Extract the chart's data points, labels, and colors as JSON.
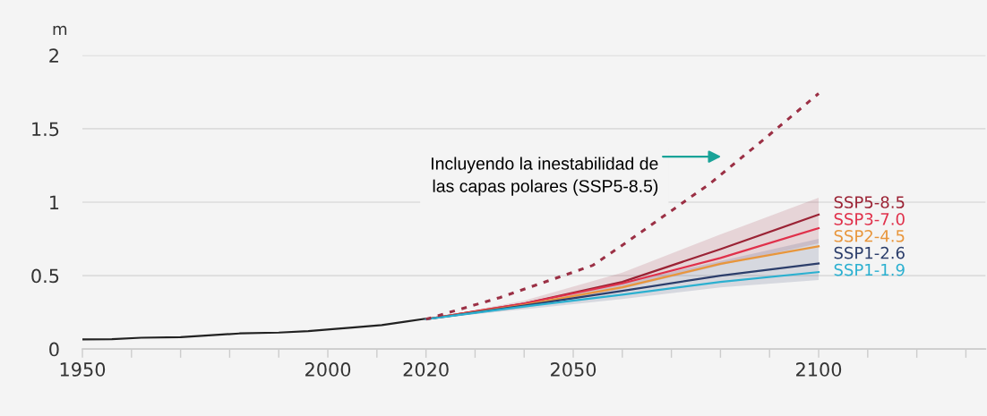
{
  "chart_data": {
    "type": "line",
    "ylabel": "m",
    "xlim": [
      1950,
      2134
    ],
    "ylim": [
      0,
      2
    ],
    "xticks": [
      1950,
      {
        "value": 1960,
        "label": null
      },
      {
        "value": 1970,
        "label": null
      },
      {
        "value": 1980,
        "label": null
      },
      {
        "value": 1990,
        "label": null
      },
      2000,
      {
        "value": 2010,
        "label": null
      },
      2020,
      {
        "value": 2030,
        "label": null
      },
      {
        "value": 2040,
        "label": null
      },
      2050,
      {
        "value": 2060,
        "label": null
      },
      {
        "value": 2070,
        "label": null
      },
      {
        "value": 2080,
        "label": null
      },
      {
        "value": 2090,
        "label": null
      },
      2100,
      {
        "value": 2110,
        "label": null
      },
      {
        "value": 2120,
        "label": null
      },
      {
        "value": 2130,
        "label": null
      }
    ],
    "yticks": [
      0,
      0.5,
      1,
      1.5,
      2
    ],
    "grid": "y",
    "series": [
      {
        "color": "#222222",
        "x": [
          1950,
          1956,
          1962,
          1970,
          1975,
          1982,
          1990,
          1996,
          2001,
          2005,
          2011,
          2016,
          2020
        ],
        "values": [
          0.065,
          0.067,
          0.077,
          0.081,
          0.091,
          0.106,
          0.112,
          0.122,
          0.136,
          0.146,
          0.163,
          0.187,
          0.207
        ]
      },
      {
        "name": "SSP5-8.5",
        "color": "#9b2335",
        "x": [
          2020,
          2040,
          2060,
          2080,
          2100
        ],
        "values": [
          0.203,
          0.31,
          0.457,
          0.68,
          0.915
        ],
        "lower": [
          0.203,
          0.28,
          0.41,
          0.57,
          0.72
        ],
        "upper": [
          0.203,
          0.33,
          0.52,
          0.78,
          1.03
        ]
      },
      {
        "name": "SSP3-7.0",
        "color": "#e0314b",
        "x": [
          2020,
          2040,
          2060,
          2080,
          2100
        ],
        "values": [
          0.203,
          0.31,
          0.447,
          0.62,
          0.823
        ]
      },
      {
        "name": "SSP2-4.5",
        "color": "#e8963c",
        "x": [
          2020,
          2040,
          2060,
          2080,
          2100
        ],
        "values": [
          0.203,
          0.3,
          0.42,
          0.58,
          0.7
        ]
      },
      {
        "name": "SSP1-2.6",
        "color": "#2c3e6b",
        "x": [
          2020,
          2040,
          2060,
          2080,
          2100
        ],
        "values": [
          0.203,
          0.295,
          0.396,
          0.5,
          0.583
        ],
        "lower": [
          0.203,
          0.27,
          0.34,
          0.42,
          0.47
        ],
        "upper": [
          0.203,
          0.31,
          0.45,
          0.6,
          0.75
        ]
      },
      {
        "name": "SSP1-1.9",
        "color": "#2bb0d0",
        "x": [
          2020,
          2040,
          2060,
          2080,
          2100
        ],
        "values": [
          0.203,
          0.29,
          0.37,
          0.457,
          0.524
        ]
      },
      {
        "color": "#9b3045",
        "line_style": "dotted",
        "x": [
          2020,
          2035,
          2054,
          2061,
          2078,
          2090,
          2100
        ],
        "values": [
          0.203,
          0.35,
          0.57,
          0.73,
          1.13,
          1.46,
          1.74
        ]
      }
    ],
    "annotations": [
      "Incluyendo la inestabilidad de\nlas capas polares (SSP5-8.5)"
    ]
  }
}
